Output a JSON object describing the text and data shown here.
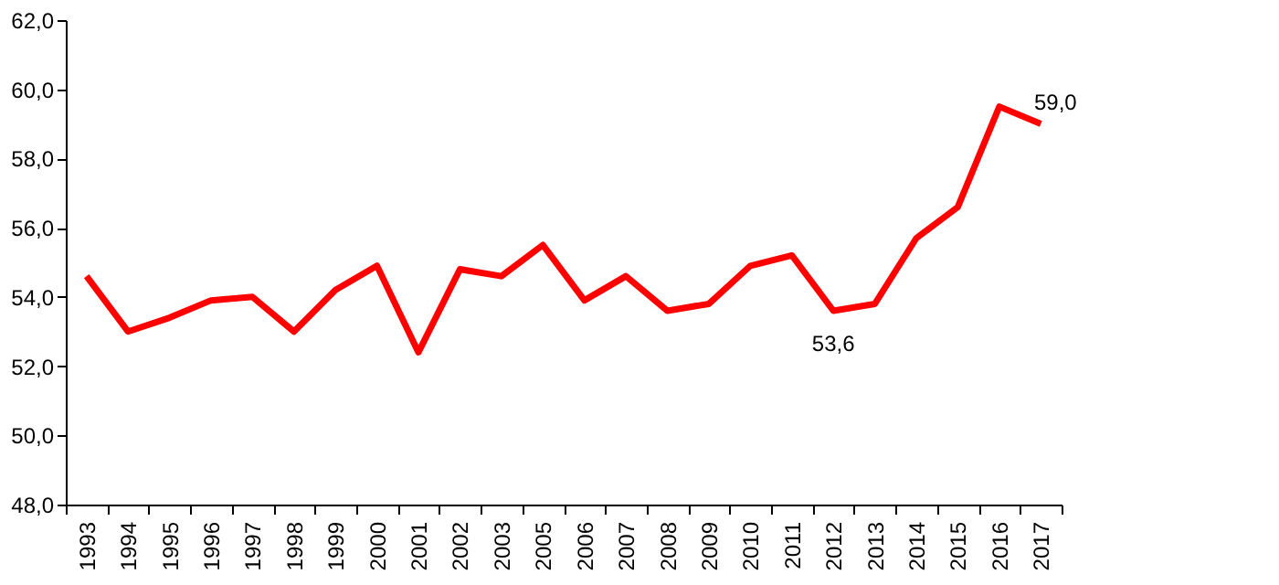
{
  "chart_data": {
    "type": "line",
    "categories": [
      "1993",
      "1994",
      "1995",
      "1996",
      "1997",
      "1998",
      "1999",
      "2000",
      "2001",
      "2002",
      "2003",
      "2005",
      "2006",
      "2007",
      "2008",
      "2009",
      "2010",
      "2011",
      "2012",
      "2013",
      "2014",
      "2015",
      "2016",
      "2017"
    ],
    "series": [
      {
        "color": "#ff0000",
        "values": [
          54.6,
          53.0,
          53.4,
          53.9,
          54.0,
          53.0,
          54.2,
          54.9,
          52.4,
          54.8,
          54.6,
          55.5,
          53.9,
          54.6,
          53.6,
          53.8,
          54.9,
          55.2,
          53.6,
          53.8,
          55.7,
          56.6,
          59.5,
          59.0
        ],
        "value_labels": [
          null,
          null,
          null,
          null,
          null,
          null,
          null,
          null,
          null,
          null,
          null,
          null,
          null,
          null,
          null,
          null,
          null,
          null,
          "53,6",
          null,
          null,
          null,
          null,
          "59,0"
        ]
      }
    ],
    "ylim": [
      48,
      62
    ],
    "yticks": [
      {
        "value": 48,
        "label": "48,0"
      },
      {
        "value": 50,
        "label": "50,0"
      },
      {
        "value": 52,
        "label": "52,0"
      },
      {
        "value": 54,
        "label": "54,0"
      },
      {
        "value": 56,
        "label": "56,0"
      },
      {
        "value": 58,
        "label": "58,0"
      },
      {
        "value": 60,
        "label": "60,0"
      },
      {
        "value": 62,
        "label": "62,0"
      }
    ],
    "grid": false,
    "legend": false,
    "marker": "none",
    "line_style": "solid"
  }
}
